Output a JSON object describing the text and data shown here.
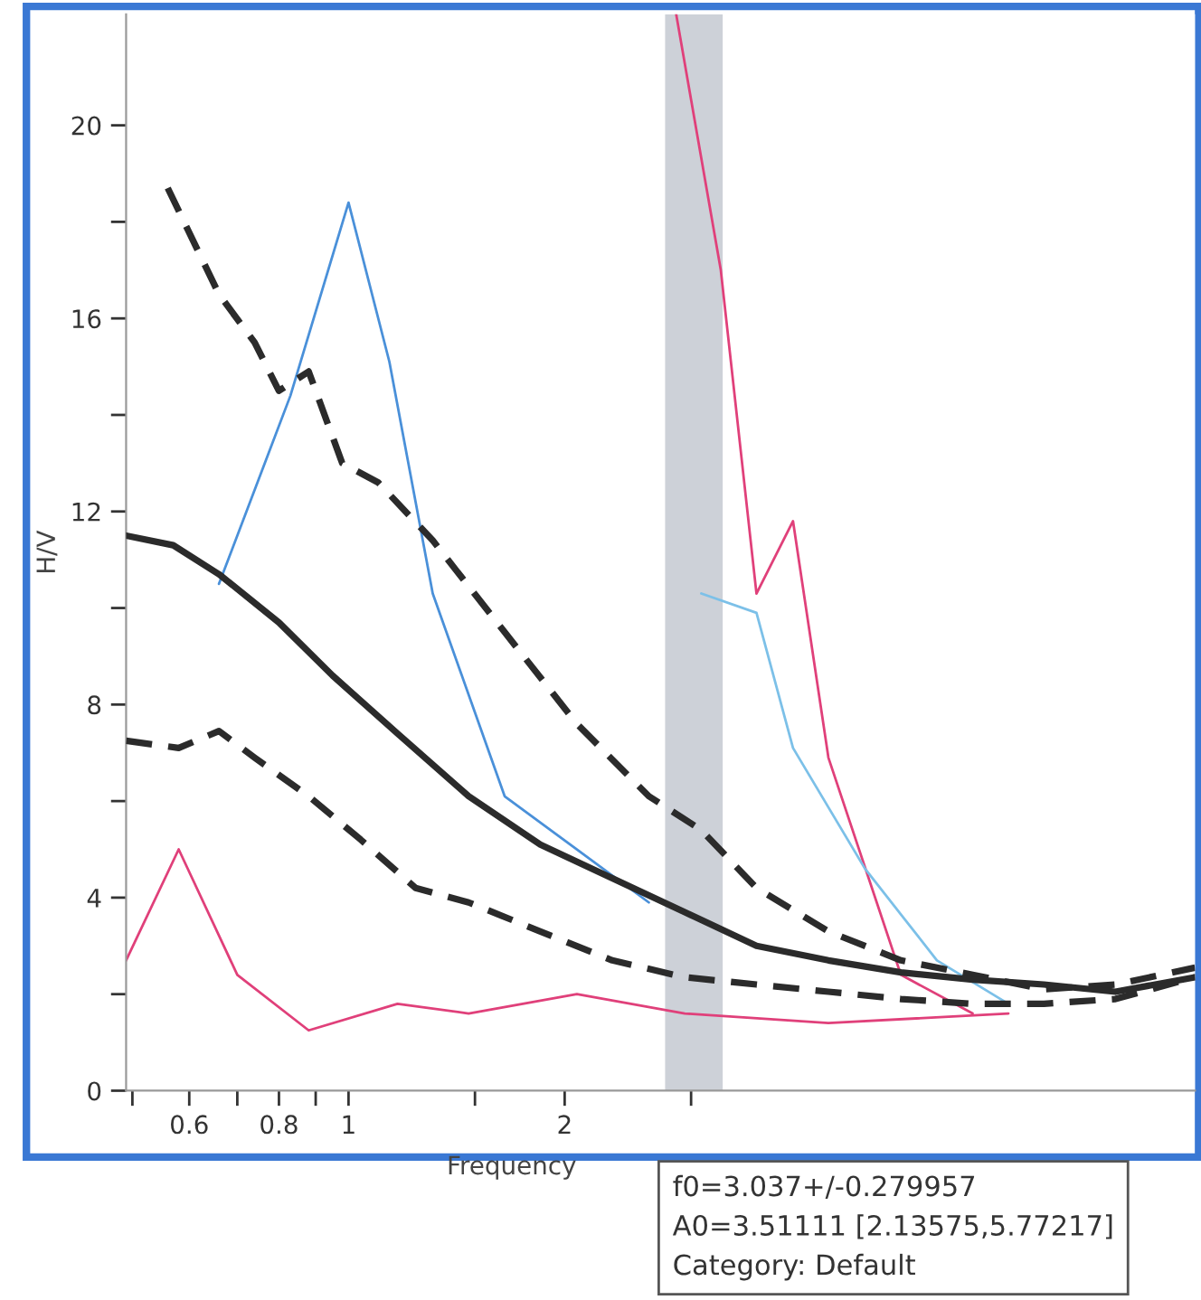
{
  "chart_data": {
    "type": "line",
    "xlabel": "Frequency",
    "ylabel": "H/V",
    "log": "x",
    "grid": false,
    "legend": false,
    "xlim": [
      0.49,
      15.1
    ],
    "ylim": [
      0,
      22.3
    ],
    "xticks": [
      {
        "value": 0.5,
        "label": null
      },
      0.6,
      {
        "value": 0.7,
        "label": null
      },
      0.8,
      {
        "value": 0.9,
        "label": null
      },
      1,
      {
        "value": 1.5,
        "label": null
      },
      2,
      {
        "value": 3,
        "label": null
      }
    ],
    "yticks": [
      0,
      {
        "value": 2,
        "label": null
      },
      4,
      {
        "value": 6,
        "label": null
      },
      8,
      {
        "value": 10,
        "label": null
      },
      12,
      {
        "value": 14,
        "label": null
      },
      16,
      {
        "value": 18,
        "label": null
      },
      20
    ],
    "bands": [
      {
        "axis": "x",
        "from": 2.76,
        "to": 3.32,
        "color": "#c8ccd4"
      }
    ],
    "series": [
      {
        "color": "#4a90d9",
        "line_style": "solid",
        "x": [
          0.66,
          0.83,
          1.0,
          1.14,
          1.31,
          1.65,
          2.08,
          2.62
        ],
        "values": [
          10.5,
          14.4,
          18.4,
          15.1,
          10.3,
          6.1,
          5.0,
          3.9
        ]
      },
      {
        "color": "#e0407a",
        "line_style": "solid",
        "x": [
          2.86,
          3.3,
          3.7,
          4.16,
          4.66,
          5.88,
          7.4
        ],
        "values": [
          22.3,
          17.0,
          10.3,
          11.8,
          6.9,
          2.4,
          1.6
        ]
      },
      {
        "color": "#e0407a",
        "line_style": "solid",
        "x": [
          0.49,
          0.58,
          0.7,
          0.88,
          1.17,
          1.47,
          2.08,
          2.94,
          4.66,
          8.3
        ],
        "values": [
          2.7,
          5.0,
          2.4,
          1.25,
          1.8,
          1.6,
          2.0,
          1.6,
          1.4,
          1.6
        ]
      },
      {
        "color": "#7cc0e8",
        "line_style": "solid",
        "x": [
          3.1,
          3.7,
          4.16,
          5.24,
          6.6,
          8.3
        ],
        "values": [
          10.3,
          9.9,
          7.1,
          4.6,
          2.7,
          1.8
        ]
      },
      {
        "color": "#2b2b2b",
        "line_style": "dashed",
        "x": [
          0.56,
          0.66,
          0.74,
          0.8,
          0.88,
          0.98,
          1.1,
          1.31,
          1.65,
          2.08,
          2.62,
          3.1,
          3.7,
          4.66,
          5.88,
          7.4,
          9.3,
          11.7,
          15.1
        ],
        "values": [
          18.7,
          16.5,
          15.5,
          14.5,
          14.9,
          13.0,
          12.6,
          11.4,
          9.5,
          7.6,
          6.1,
          5.4,
          4.2,
          3.3,
          2.7,
          2.4,
          2.1,
          2.2,
          2.55
        ]
      },
      {
        "color": "#2b2b2b",
        "line_style": "solid",
        "x": [
          0.49,
          0.57,
          0.66,
          0.8,
          0.95,
          1.17,
          1.47,
          1.85,
          2.33,
          2.94,
          3.7,
          4.66,
          5.88,
          7.4,
          9.3,
          11.7,
          15.1
        ],
        "values": [
          11.5,
          11.3,
          10.7,
          9.7,
          8.6,
          7.4,
          6.1,
          5.1,
          4.4,
          3.7,
          3.0,
          2.7,
          2.45,
          2.3,
          2.2,
          2.05,
          2.35
        ]
      },
      {
        "color": "#2b2b2b",
        "line_style": "dashed",
        "x": [
          0.49,
          0.58,
          0.66,
          0.74,
          0.88,
          1.04,
          1.24,
          1.47,
          1.85,
          2.33,
          2.94,
          3.7,
          4.66,
          5.88,
          7.4,
          9.3,
          11.7,
          15.1
        ],
        "values": [
          7.25,
          7.1,
          7.45,
          6.9,
          6.1,
          5.2,
          4.2,
          3.9,
          3.3,
          2.7,
          2.35,
          2.2,
          2.05,
          1.9,
          1.8,
          1.8,
          1.9,
          2.35
        ]
      }
    ],
    "annotations": [
      "f0=3.037+/-0.279957",
      "A0=3.51111 [2.13575,5.77217]",
      "Category: Default"
    ]
  }
}
